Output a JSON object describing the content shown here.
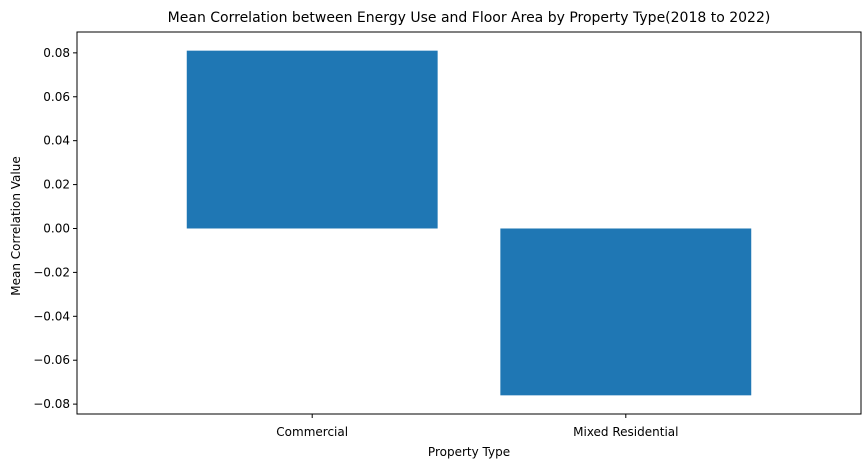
{
  "chart_data": {
    "type": "bar",
    "title": "Mean Correlation between Energy Use and Floor Area by Property Type(2018 to 2022)",
    "xlabel": "Property Type",
    "ylabel": "Mean Correlation Value",
    "categories": [
      "Commercial",
      "Mixed Residential"
    ],
    "values": [
      0.081,
      -0.076
    ],
    "ylim": [
      -0.0845,
      0.0895
    ],
    "yticks": [
      -0.08,
      -0.06,
      -0.04,
      -0.02,
      0.0,
      0.02,
      0.04,
      0.06,
      0.08
    ],
    "ytick_labels": [
      "−0.08",
      "−0.06",
      "−0.04",
      "−0.02",
      "0.00",
      "0.02",
      "0.04",
      "0.06",
      "0.08"
    ],
    "bar_color": "#1f77b4",
    "grid": false,
    "legend": "none"
  }
}
